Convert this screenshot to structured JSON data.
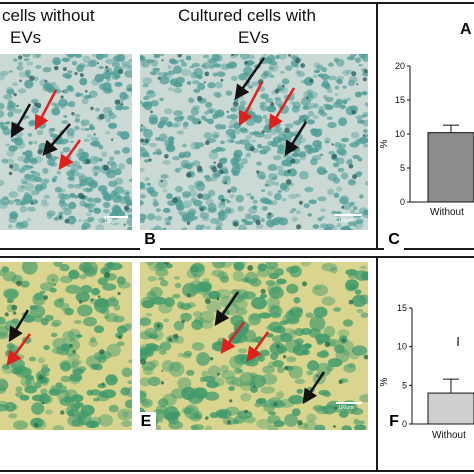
{
  "figure": {
    "headers": {
      "left": {
        "line1": "cells without",
        "line2": "EVs"
      },
      "middle": {
        "line1": "Cultured cells with",
        "line2": "EVs"
      },
      "corner": "A"
    },
    "panel_letters": {
      "B": "B",
      "C": "C",
      "E": "E",
      "F": "F"
    },
    "scale_bar_label": "100μm",
    "colors": {
      "stain_blue_bg": "#cbd9d4",
      "stain_blue_cell": "#4f9d98",
      "stain_yellow_bg": "#d9d58e",
      "stain_yellow_cell": "#3f9a6b",
      "arrow_black": "#111111",
      "arrow_red": "#e0201d",
      "bar_top_fill": "#8c8c8c",
      "bar_bottom_fill": "#cfcfcf"
    },
    "chart_top_text": {
      "ylabel": "%",
      "category": "Without"
    },
    "chart_bottom_text": {
      "ylabel": "%",
      "category": "Without",
      "marker": "I"
    }
  },
  "chart_data": [
    {
      "type": "bar",
      "categories": [
        "Without"
      ],
      "values": [
        10.2
      ],
      "error": [
        1.1
      ],
      "ylabel": "%",
      "ylim": [
        0,
        20
      ],
      "yticks": [
        0,
        5,
        10,
        15,
        20
      ]
    },
    {
      "type": "bar",
      "categories": [
        "Without"
      ],
      "values": [
        4.0
      ],
      "error": [
        1.8
      ],
      "ylabel": "%",
      "ylim": [
        0,
        15
      ],
      "yticks": [
        0,
        5,
        10,
        15
      ]
    }
  ]
}
